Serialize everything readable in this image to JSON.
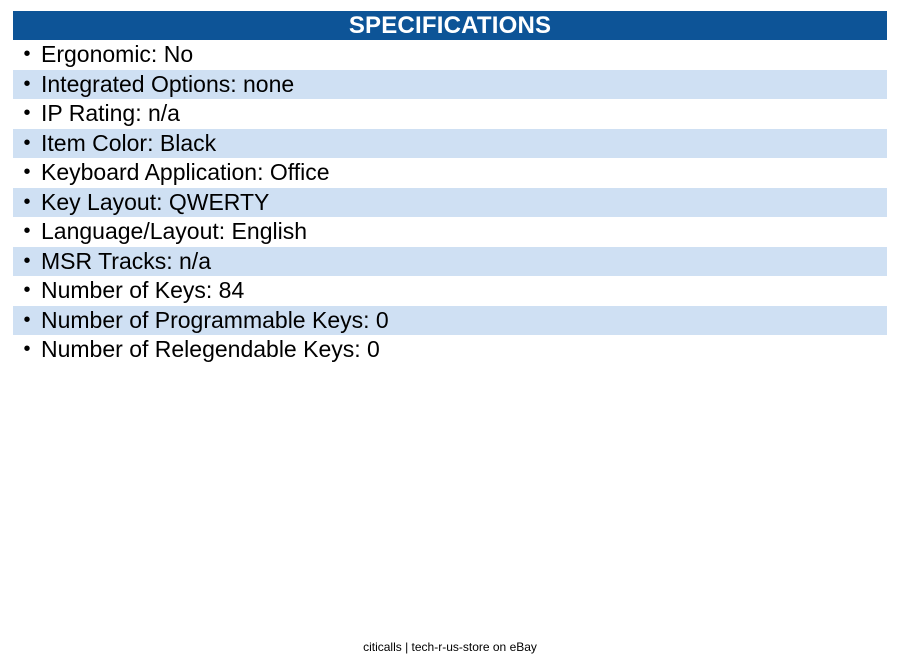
{
  "header": {
    "title": "SPECIFICATIONS"
  },
  "specs": [
    "Ergonomic: No",
    "Integrated Options: none",
    "IP Rating: n/a",
    "Item Color: Black",
    "Keyboard Application: Office",
    "Key Layout: QWERTY",
    "Language/Layout: English",
    "MSR Tracks: n/a",
    "Number of Keys: 84",
    "Number of Programmable Keys: 0",
    "Number of Relegendable Keys: 0"
  ],
  "bullet_glyph": "•",
  "footer": {
    "text": "citicalls | tech-r-us-store on eBay"
  },
  "colors": {
    "header_bg": "#0d5497",
    "stripe_bg": "#cfe0f3"
  }
}
